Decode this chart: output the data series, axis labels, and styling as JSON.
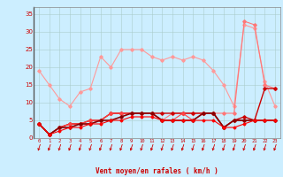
{
  "bg_color": "#cceeff",
  "grid_color": "#aacccc",
  "xlabel": "Vent moyen/en rafales ( km/h )",
  "x_ticks": [
    0,
    1,
    2,
    3,
    4,
    5,
    6,
    7,
    8,
    9,
    10,
    11,
    12,
    13,
    14,
    15,
    16,
    17,
    18,
    19,
    20,
    21,
    22,
    23
  ],
  "ylim": [
    0,
    37
  ],
  "yticks": [
    0,
    5,
    10,
    15,
    20,
    25,
    30,
    35
  ],
  "series": [
    {
      "x": [
        0,
        1,
        2,
        3,
        4,
        5,
        6,
        7,
        8,
        9,
        10,
        11,
        12,
        13,
        14,
        15,
        16,
        17,
        18,
        19,
        20,
        21,
        22,
        23
      ],
      "y": [
        19,
        15,
        11,
        9,
        13,
        14,
        23,
        20,
        25,
        25,
        25,
        23,
        22,
        23,
        22,
        23,
        22,
        19,
        15,
        9,
        32,
        31,
        16,
        9
      ],
      "color": "#ff9999",
      "lw": 0.8,
      "marker": "D",
      "ms": 1.8
    },
    {
      "x": [
        0,
        1,
        2,
        3,
        4,
        5,
        6,
        7,
        8,
        9,
        10,
        11,
        12,
        13,
        14,
        15,
        16,
        17,
        18,
        19,
        20,
        21,
        22,
        23
      ],
      "y": [
        4,
        1,
        3,
        4,
        4,
        4,
        5,
        7,
        7,
        7,
        7,
        7,
        5,
        7,
        7,
        7,
        7,
        7,
        7,
        7,
        33,
        32,
        15,
        14
      ],
      "color": "#ff7777",
      "lw": 0.8,
      "marker": "D",
      "ms": 1.8
    },
    {
      "x": [
        0,
        1,
        2,
        3,
        4,
        5,
        6,
        7,
        8,
        9,
        10,
        11,
        12,
        13,
        14,
        15,
        16,
        17,
        18,
        19,
        20,
        21,
        22,
        23
      ],
      "y": [
        4,
        1,
        3,
        4,
        4,
        5,
        5,
        7,
        7,
        7,
        7,
        7,
        7,
        7,
        7,
        7,
        7,
        7,
        3,
        5,
        6,
        5,
        14,
        14
      ],
      "color": "#cc0000",
      "lw": 1.0,
      "marker": "D",
      "ms": 1.8
    },
    {
      "x": [
        0,
        1,
        2,
        3,
        4,
        5,
        6,
        7,
        8,
        9,
        10,
        11,
        12,
        13,
        14,
        15,
        16,
        17,
        18,
        19,
        20,
        21,
        22,
        23
      ],
      "y": [
        4,
        1,
        3,
        4,
        4,
        5,
        5,
        7,
        7,
        7,
        7,
        7,
        5,
        5,
        7,
        5,
        7,
        7,
        3,
        5,
        5,
        5,
        5,
        5
      ],
      "color": "#ff4444",
      "lw": 0.8,
      "marker": "D",
      "ms": 1.8
    },
    {
      "x": [
        0,
        1,
        2,
        3,
        4,
        5,
        6,
        7,
        8,
        9,
        10,
        11,
        12,
        13,
        14,
        15,
        16,
        17,
        18,
        19,
        20,
        21,
        22,
        23
      ],
      "y": [
        4,
        1,
        3,
        3,
        4,
        4,
        5,
        5,
        6,
        7,
        7,
        7,
        5,
        5,
        5,
        5,
        7,
        7,
        3,
        5,
        5,
        5,
        5,
        5
      ],
      "color": "#880000",
      "lw": 1.2,
      "marker": "D",
      "ms": 1.8
    },
    {
      "x": [
        0,
        1,
        2,
        3,
        4,
        5,
        6,
        7,
        8,
        9,
        10,
        11,
        12,
        13,
        14,
        15,
        16,
        17,
        18,
        19,
        20,
        21,
        22,
        23
      ],
      "y": [
        4,
        1,
        2,
        3,
        3,
        4,
        4,
        5,
        5,
        6,
        6,
        6,
        5,
        5,
        5,
        5,
        5,
        5,
        3,
        3,
        4,
        5,
        5,
        5
      ],
      "color": "#ff0000",
      "lw": 0.8,
      "marker": "D",
      "ms": 1.5
    }
  ],
  "arrow_color": "#cc0000",
  "left_spine_color": "#555555"
}
